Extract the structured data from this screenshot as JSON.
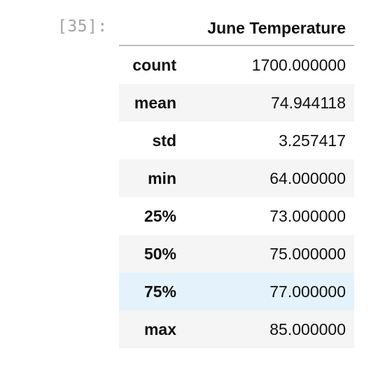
{
  "cell": {
    "prompt": "[35]:"
  },
  "dataframe": {
    "index_header": "",
    "column_header": "June Temperature",
    "rows": [
      {
        "label": "count",
        "value": "1700.000000"
      },
      {
        "label": "mean",
        "value": "74.944118"
      },
      {
        "label": "std",
        "value": "3.257417"
      },
      {
        "label": "min",
        "value": "64.000000"
      },
      {
        "label": "25%",
        "value": "73.000000"
      },
      {
        "label": "50%",
        "value": "75.000000"
      },
      {
        "label": "75%",
        "value": "77.000000"
      },
      {
        "label": "max",
        "value": "85.000000"
      }
    ],
    "hovered_row": "75%"
  },
  "colors": {
    "prompt_text": "#a3a3a3",
    "striped_row": "#f5f5f5",
    "hover_row": "#e4f3fb",
    "header_rule": "#bdbdbd"
  }
}
